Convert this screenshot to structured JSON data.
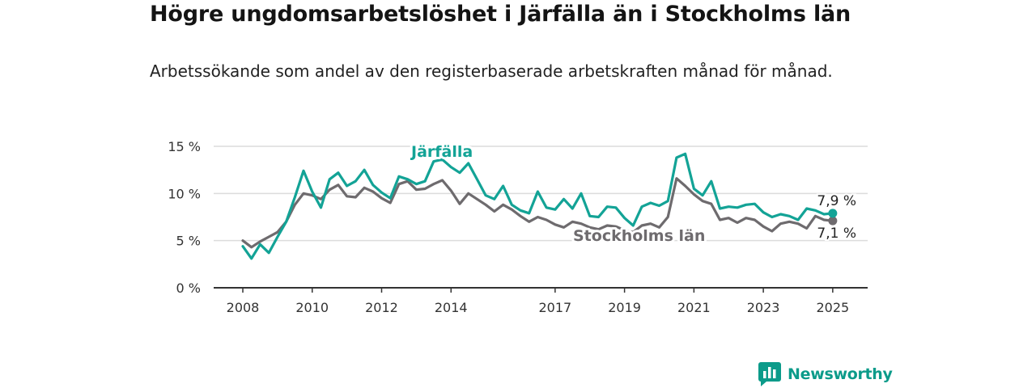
{
  "title": "Högre ungdomsarbetslöshet i Järfälla än i Stockholms län",
  "subtitle": "Arbetssökande som andel av den registerbaserade arbetskraften månad för månad.",
  "brand": {
    "name": "Newsworthy",
    "icon": "newsworthy-logo-icon"
  },
  "colors": {
    "jarfalla": "#13a396",
    "stockholm": "#6e6b6e",
    "grid": "#dcdcdc",
    "axis": "#333333",
    "brand": "#0c9b8a"
  },
  "chart_data": {
    "type": "line",
    "title": "Högre ungdomsarbetslöshet i Järfälla än i Stockholms län",
    "subtitle": "Arbetssökande som andel av den registerbaserade arbetskraften månad för månad.",
    "xlabel": "",
    "ylabel": "",
    "x_ticks": [
      "2008",
      "2010",
      "2012",
      "2014",
      "2017",
      "2019",
      "2021",
      "2023",
      "2025"
    ],
    "y_ticks": [
      "0 %",
      "5 %",
      "10 %",
      "15 %"
    ],
    "ylim": [
      0,
      15
    ],
    "xlim": [
      "2008-01",
      "2025-03"
    ],
    "grid": true,
    "legend": "direct labels on lines",
    "series": [
      {
        "name": "Järfälla",
        "color": "#13a396",
        "end_label": "7,9 %",
        "points": [
          [
            "2008-01",
            4.4
          ],
          [
            "2008-04",
            3.1
          ],
          [
            "2008-07",
            4.6
          ],
          [
            "2008-10",
            3.7
          ],
          [
            "2009-01",
            5.4
          ],
          [
            "2009-04",
            7.0
          ],
          [
            "2009-07",
            9.6
          ],
          [
            "2009-10",
            12.4
          ],
          [
            "2010-01",
            10.2
          ],
          [
            "2010-04",
            8.5
          ],
          [
            "2010-07",
            11.5
          ],
          [
            "2010-10",
            12.2
          ],
          [
            "2011-01",
            10.8
          ],
          [
            "2011-04",
            11.3
          ],
          [
            "2011-07",
            12.5
          ],
          [
            "2011-10",
            10.9
          ],
          [
            "2012-01",
            10.1
          ],
          [
            "2012-04",
            9.5
          ],
          [
            "2012-07",
            11.8
          ],
          [
            "2012-10",
            11.5
          ],
          [
            "2013-01",
            11.0
          ],
          [
            "2013-04",
            11.3
          ],
          [
            "2013-07",
            13.4
          ],
          [
            "2013-10",
            13.6
          ],
          [
            "2014-01",
            12.8
          ],
          [
            "2014-04",
            12.2
          ],
          [
            "2014-07",
            13.2
          ],
          [
            "2014-10",
            11.5
          ],
          [
            "2015-01",
            9.8
          ],
          [
            "2015-04",
            9.4
          ],
          [
            "2015-07",
            10.8
          ],
          [
            "2015-10",
            8.8
          ],
          [
            "2016-01",
            8.2
          ],
          [
            "2016-04",
            7.9
          ],
          [
            "2016-07",
            10.2
          ],
          [
            "2016-10",
            8.5
          ],
          [
            "2017-01",
            8.3
          ],
          [
            "2017-04",
            9.4
          ],
          [
            "2017-07",
            8.4
          ],
          [
            "2017-10",
            10.0
          ],
          [
            "2018-01",
            7.6
          ],
          [
            "2018-04",
            7.5
          ],
          [
            "2018-07",
            8.6
          ],
          [
            "2018-10",
            8.5
          ],
          [
            "2019-01",
            7.4
          ],
          [
            "2019-04",
            6.6
          ],
          [
            "2019-07",
            8.6
          ],
          [
            "2019-10",
            9.0
          ],
          [
            "2020-01",
            8.7
          ],
          [
            "2020-04",
            9.2
          ],
          [
            "2020-07",
            13.8
          ],
          [
            "2020-10",
            14.2
          ],
          [
            "2021-01",
            10.5
          ],
          [
            "2021-04",
            9.8
          ],
          [
            "2021-07",
            11.3
          ],
          [
            "2021-10",
            8.4
          ],
          [
            "2022-01",
            8.6
          ],
          [
            "2022-04",
            8.5
          ],
          [
            "2022-07",
            8.8
          ],
          [
            "2022-10",
            8.9
          ],
          [
            "2023-01",
            8.0
          ],
          [
            "2023-04",
            7.5
          ],
          [
            "2023-07",
            7.8
          ],
          [
            "2023-10",
            7.6
          ],
          [
            "2024-01",
            7.2
          ],
          [
            "2024-04",
            8.4
          ],
          [
            "2024-07",
            8.2
          ],
          [
            "2024-10",
            7.8
          ],
          [
            "2025-01",
            7.9
          ]
        ]
      },
      {
        "name": "Stockholms län",
        "color": "#6e6b6e",
        "end_label": "7,1 %",
        "points": [
          [
            "2008-01",
            5.0
          ],
          [
            "2008-04",
            4.3
          ],
          [
            "2008-07",
            4.9
          ],
          [
            "2008-10",
            5.4
          ],
          [
            "2009-01",
            5.9
          ],
          [
            "2009-04",
            7.0
          ],
          [
            "2009-07",
            8.8
          ],
          [
            "2009-10",
            10.0
          ],
          [
            "2010-01",
            9.8
          ],
          [
            "2010-04",
            9.4
          ],
          [
            "2010-07",
            10.4
          ],
          [
            "2010-10",
            10.9
          ],
          [
            "2011-01",
            9.7
          ],
          [
            "2011-04",
            9.6
          ],
          [
            "2011-07",
            10.6
          ],
          [
            "2011-10",
            10.2
          ],
          [
            "2012-01",
            9.5
          ],
          [
            "2012-04",
            9.0
          ],
          [
            "2012-07",
            11.0
          ],
          [
            "2012-10",
            11.3
          ],
          [
            "2013-01",
            10.4
          ],
          [
            "2013-04",
            10.5
          ],
          [
            "2013-07",
            11.0
          ],
          [
            "2013-10",
            11.4
          ],
          [
            "2014-01",
            10.3
          ],
          [
            "2014-04",
            8.9
          ],
          [
            "2014-07",
            10.0
          ],
          [
            "2014-10",
            9.4
          ],
          [
            "2015-01",
            8.8
          ],
          [
            "2015-04",
            8.1
          ],
          [
            "2015-07",
            8.8
          ],
          [
            "2015-10",
            8.3
          ],
          [
            "2016-01",
            7.6
          ],
          [
            "2016-04",
            7.0
          ],
          [
            "2016-07",
            7.5
          ],
          [
            "2016-10",
            7.2
          ],
          [
            "2017-01",
            6.7
          ],
          [
            "2017-04",
            6.4
          ],
          [
            "2017-07",
            7.0
          ],
          [
            "2017-10",
            6.8
          ],
          [
            "2018-01",
            6.4
          ],
          [
            "2018-04",
            6.2
          ],
          [
            "2018-07",
            6.6
          ],
          [
            "2018-10",
            6.5
          ],
          [
            "2019-01",
            6.1
          ],
          [
            "2019-04",
            5.9
          ],
          [
            "2019-07",
            6.6
          ],
          [
            "2019-10",
            6.8
          ],
          [
            "2020-01",
            6.4
          ],
          [
            "2020-04",
            7.5
          ],
          [
            "2020-07",
            11.6
          ],
          [
            "2020-10",
            10.8
          ],
          [
            "2021-01",
            9.9
          ],
          [
            "2021-04",
            9.2
          ],
          [
            "2021-07",
            8.9
          ],
          [
            "2021-10",
            7.2
          ],
          [
            "2022-01",
            7.4
          ],
          [
            "2022-04",
            6.9
          ],
          [
            "2022-07",
            7.4
          ],
          [
            "2022-10",
            7.2
          ],
          [
            "2023-01",
            6.5
          ],
          [
            "2023-04",
            6.0
          ],
          [
            "2023-07",
            6.8
          ],
          [
            "2023-10",
            7.0
          ],
          [
            "2024-01",
            6.8
          ],
          [
            "2024-04",
            6.3
          ],
          [
            "2024-07",
            7.6
          ],
          [
            "2024-10",
            7.2
          ],
          [
            "2025-01",
            7.1
          ]
        ]
      }
    ]
  }
}
